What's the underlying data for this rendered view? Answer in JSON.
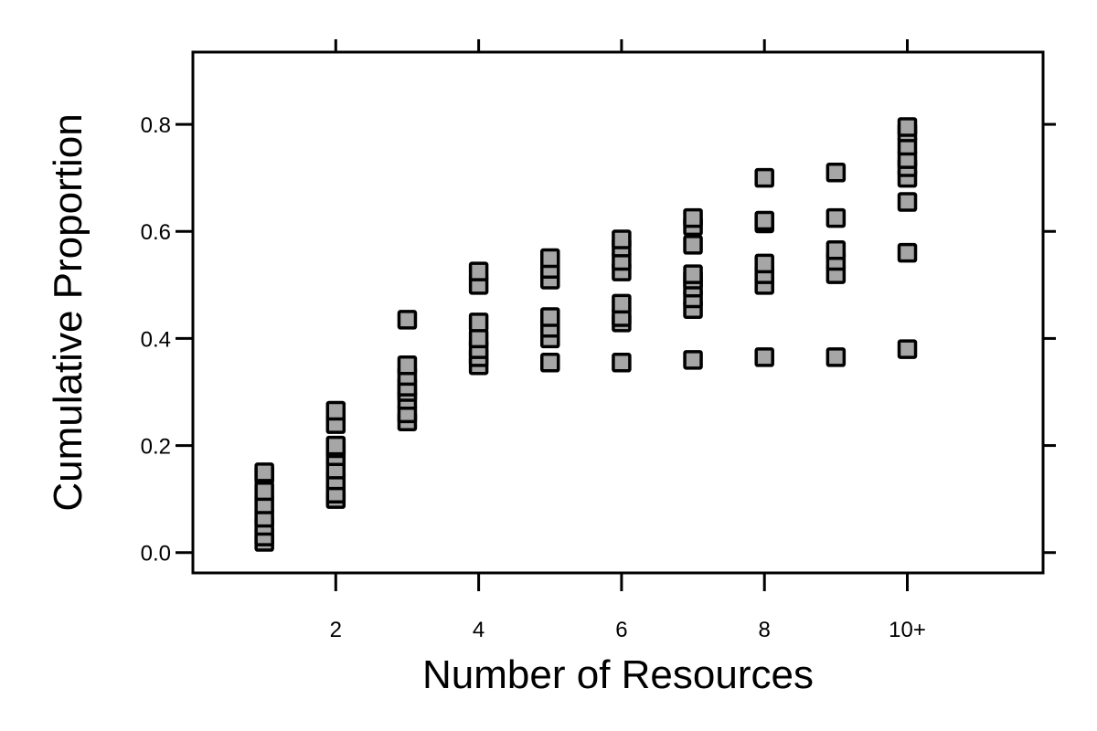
{
  "chart_data": {
    "type": "scatter",
    "xlabel": "Number of Resources",
    "ylabel": "Cumulative Proportion",
    "xlim": [
      0.0,
      11.9
    ],
    "ylim": [
      -0.038,
      0.935
    ],
    "x_ticks": [
      2,
      4,
      6,
      8,
      10
    ],
    "x_tick_labels": [
      "2",
      "4",
      "6",
      "8",
      "10+"
    ],
    "y_ticks": [
      0.0,
      0.2,
      0.4,
      0.6,
      0.8
    ],
    "y_tick_labels": [
      "0.0",
      "0.2",
      "0.4",
      "0.6",
      "0.8"
    ],
    "grid": false,
    "legend": "none",
    "marker": "square",
    "marker_color": "#a6a6a6",
    "series": [
      {
        "points": [
          [
            1,
            0.02
          ],
          [
            1,
            0.03
          ],
          [
            1,
            0.05
          ],
          [
            1,
            0.065
          ],
          [
            1,
            0.09
          ],
          [
            1,
            0.115
          ],
          [
            1,
            0.145
          ],
          [
            1,
            0.15
          ],
          [
            2,
            0.1
          ],
          [
            2,
            0.11
          ],
          [
            2,
            0.135
          ],
          [
            2,
            0.155
          ],
          [
            2,
            0.18
          ],
          [
            2,
            0.195
          ],
          [
            2,
            0.2
          ],
          [
            2,
            0.24
          ],
          [
            2,
            0.265
          ],
          [
            3,
            0.245
          ],
          [
            3,
            0.26
          ],
          [
            3,
            0.285
          ],
          [
            3,
            0.3
          ],
          [
            3,
            0.31
          ],
          [
            3,
            0.33
          ],
          [
            3,
            0.35
          ],
          [
            3,
            0.435
          ],
          [
            4,
            0.35
          ],
          [
            4,
            0.365
          ],
          [
            4,
            0.38
          ],
          [
            4,
            0.4
          ],
          [
            4,
            0.43
          ],
          [
            4,
            0.5
          ],
          [
            4,
            0.525
          ],
          [
            5,
            0.355
          ],
          [
            5,
            0.4
          ],
          [
            5,
            0.42
          ],
          [
            5,
            0.44
          ],
          [
            5,
            0.51
          ],
          [
            5,
            0.53
          ],
          [
            5,
            0.55
          ],
          [
            6,
            0.355
          ],
          [
            6,
            0.43
          ],
          [
            6,
            0.44
          ],
          [
            6,
            0.465
          ],
          [
            6,
            0.525
          ],
          [
            6,
            0.545
          ],
          [
            6,
            0.57
          ],
          [
            6,
            0.585
          ],
          [
            7,
            0.36
          ],
          [
            7,
            0.455
          ],
          [
            7,
            0.475
          ],
          [
            7,
            0.495
          ],
          [
            7,
            0.51
          ],
          [
            7,
            0.52
          ],
          [
            7,
            0.575
          ],
          [
            7,
            0.61
          ],
          [
            7,
            0.625
          ],
          [
            8,
            0.365
          ],
          [
            8,
            0.5
          ],
          [
            8,
            0.52
          ],
          [
            8,
            0.54
          ],
          [
            8,
            0.615
          ],
          [
            8,
            0.62
          ],
          [
            8,
            0.7
          ],
          [
            9,
            0.365
          ],
          [
            9,
            0.52
          ],
          [
            9,
            0.545
          ],
          [
            9,
            0.565
          ],
          [
            9,
            0.625
          ],
          [
            9,
            0.71
          ],
          [
            10,
            0.38
          ],
          [
            10,
            0.56
          ],
          [
            10,
            0.655
          ],
          [
            10,
            0.7
          ],
          [
            10,
            0.72
          ],
          [
            10,
            0.735
          ],
          [
            10,
            0.76
          ],
          [
            10,
            0.785
          ],
          [
            10,
            0.795
          ]
        ]
      }
    ]
  }
}
